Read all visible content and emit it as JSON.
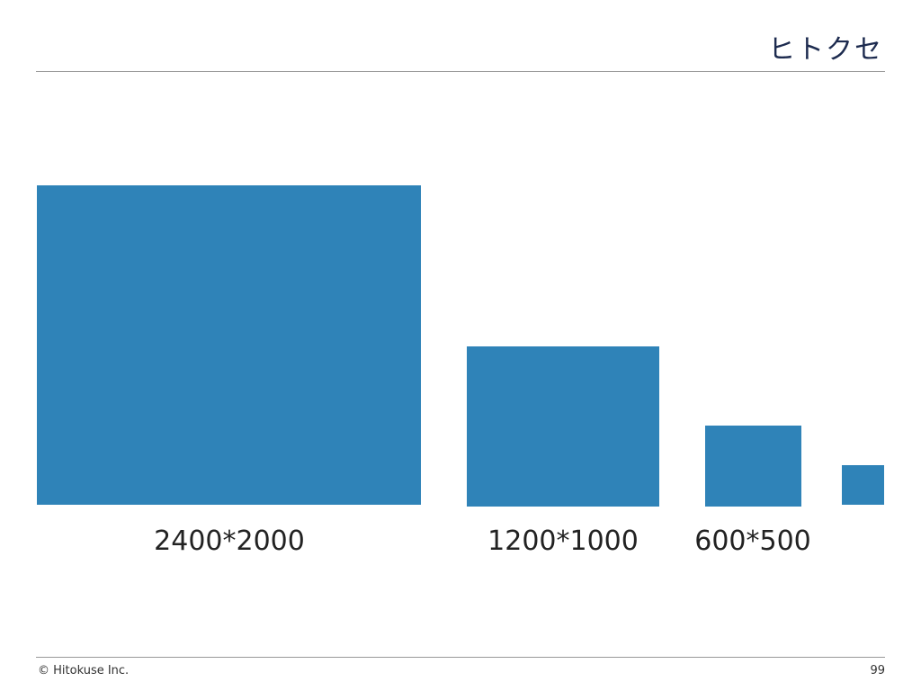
{
  "header": {
    "logo": "ヒトクセ"
  },
  "images": [
    {
      "label": "2400*2000"
    },
    {
      "label": "1200*1000"
    },
    {
      "label": "600*500"
    }
  ],
  "footer": {
    "copyright": "© Hitokuse Inc.",
    "page": "99"
  }
}
